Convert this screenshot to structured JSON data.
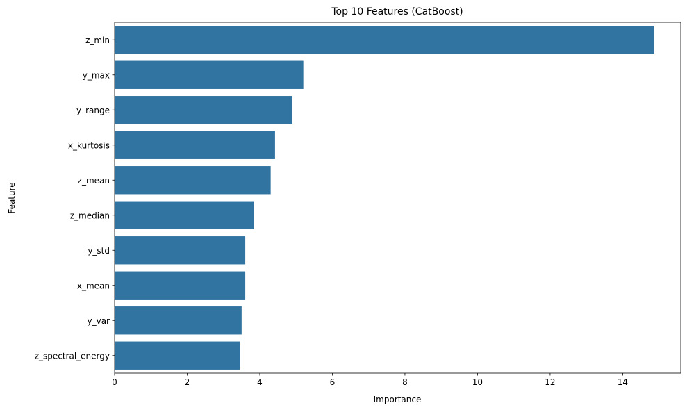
{
  "chart_data": {
    "type": "bar",
    "orientation": "horizontal",
    "title": "Top 10 Features (CatBoost)",
    "xlabel": "Importance",
    "ylabel": "Feature",
    "categories": [
      "z_min",
      "y_max",
      "y_range",
      "x_kurtosis",
      "z_mean",
      "z_median",
      "y_std",
      "x_mean",
      "y_var",
      "z_spectral_energy"
    ],
    "values": [
      14.87,
      5.2,
      4.9,
      4.42,
      4.3,
      3.84,
      3.6,
      3.6,
      3.5,
      3.45
    ],
    "xlim": [
      0,
      15.6
    ],
    "xticks": [
      0,
      2,
      4,
      6,
      8,
      10,
      12,
      14
    ],
    "bar_color": "#3274a1",
    "grid": false
  }
}
